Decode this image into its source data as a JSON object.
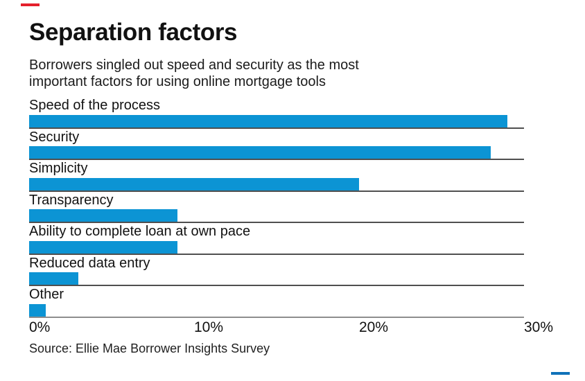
{
  "accent": {
    "top_dash_color": "#e4202c",
    "bottom_dash_color": "#0f71b9"
  },
  "header": {
    "title": "Separation factors",
    "subtitle": "Borrowers singled out speed and security as the most important factors for using online mortgage tools"
  },
  "chart_data": {
    "type": "bar",
    "orientation": "horizontal",
    "title": "Separation factors",
    "subtitle": "Borrowers singled out speed and security as the most important factors for using online mortgage tools",
    "categories": [
      "Speed of the process",
      "Security",
      "Simplicity",
      "Transparency",
      "Ability to complete loan at own pace",
      "Reduced data entry",
      "Other"
    ],
    "values": [
      29,
      28,
      20,
      9,
      9,
      3,
      1
    ],
    "unit": "%",
    "xlim": [
      0,
      30
    ],
    "x_ticks": [
      "0%",
      "10%",
      "20%",
      "30%"
    ],
    "bar_color": "#0c94d4",
    "row_rule_color": "#4f4f4f",
    "legend": "none",
    "grid": "row-separator-rules"
  },
  "footer": {
    "source": "Source: Ellie Mae Borrower Insights Survey"
  }
}
